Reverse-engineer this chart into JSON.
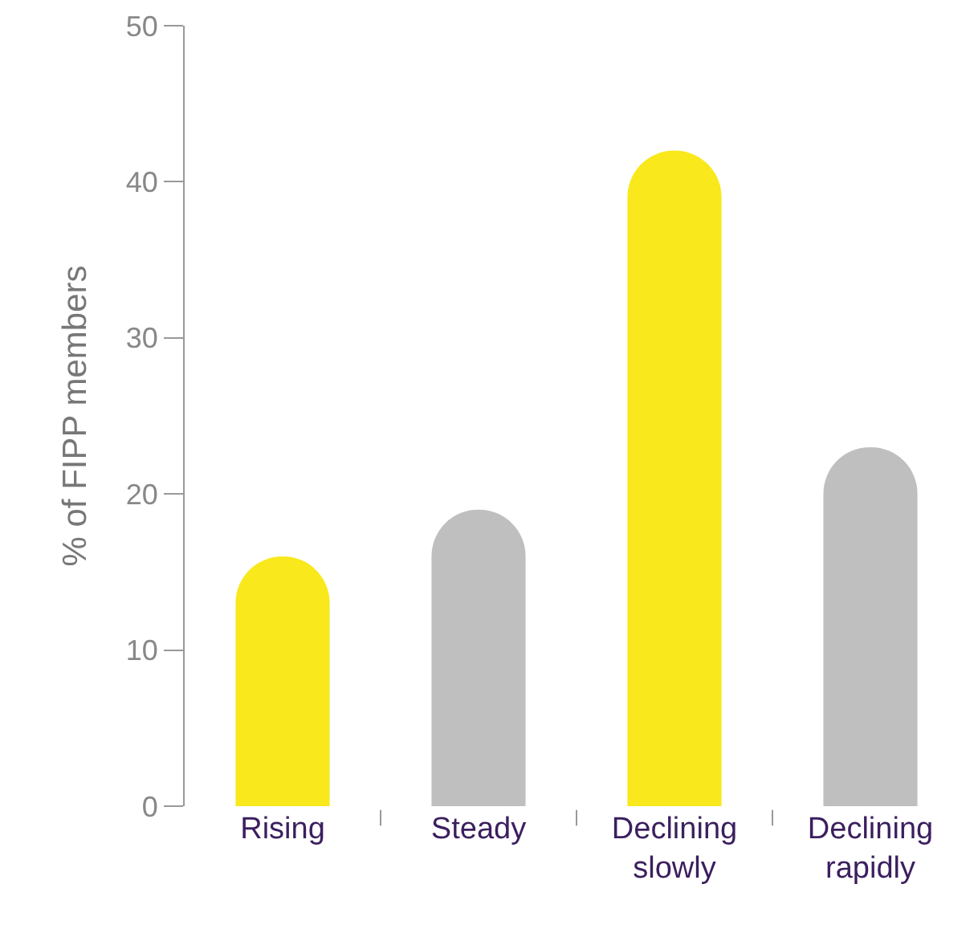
{
  "chart_data": {
    "type": "bar",
    "ylabel": "% of FIPP members",
    "categories": [
      "Rising",
      "Steady",
      "Declining\nslowly",
      "Declining\nrapidly"
    ],
    "values": [
      16,
      19,
      42,
      23
    ],
    "colors": [
      "#f9e81b",
      "#bfbfbf",
      "#f9e81b",
      "#bfbfbf"
    ],
    "ylim": [
      0,
      50
    ],
    "yticks": [
      0,
      10,
      20,
      30,
      40,
      50
    ],
    "grid": false,
    "legend": false
  }
}
